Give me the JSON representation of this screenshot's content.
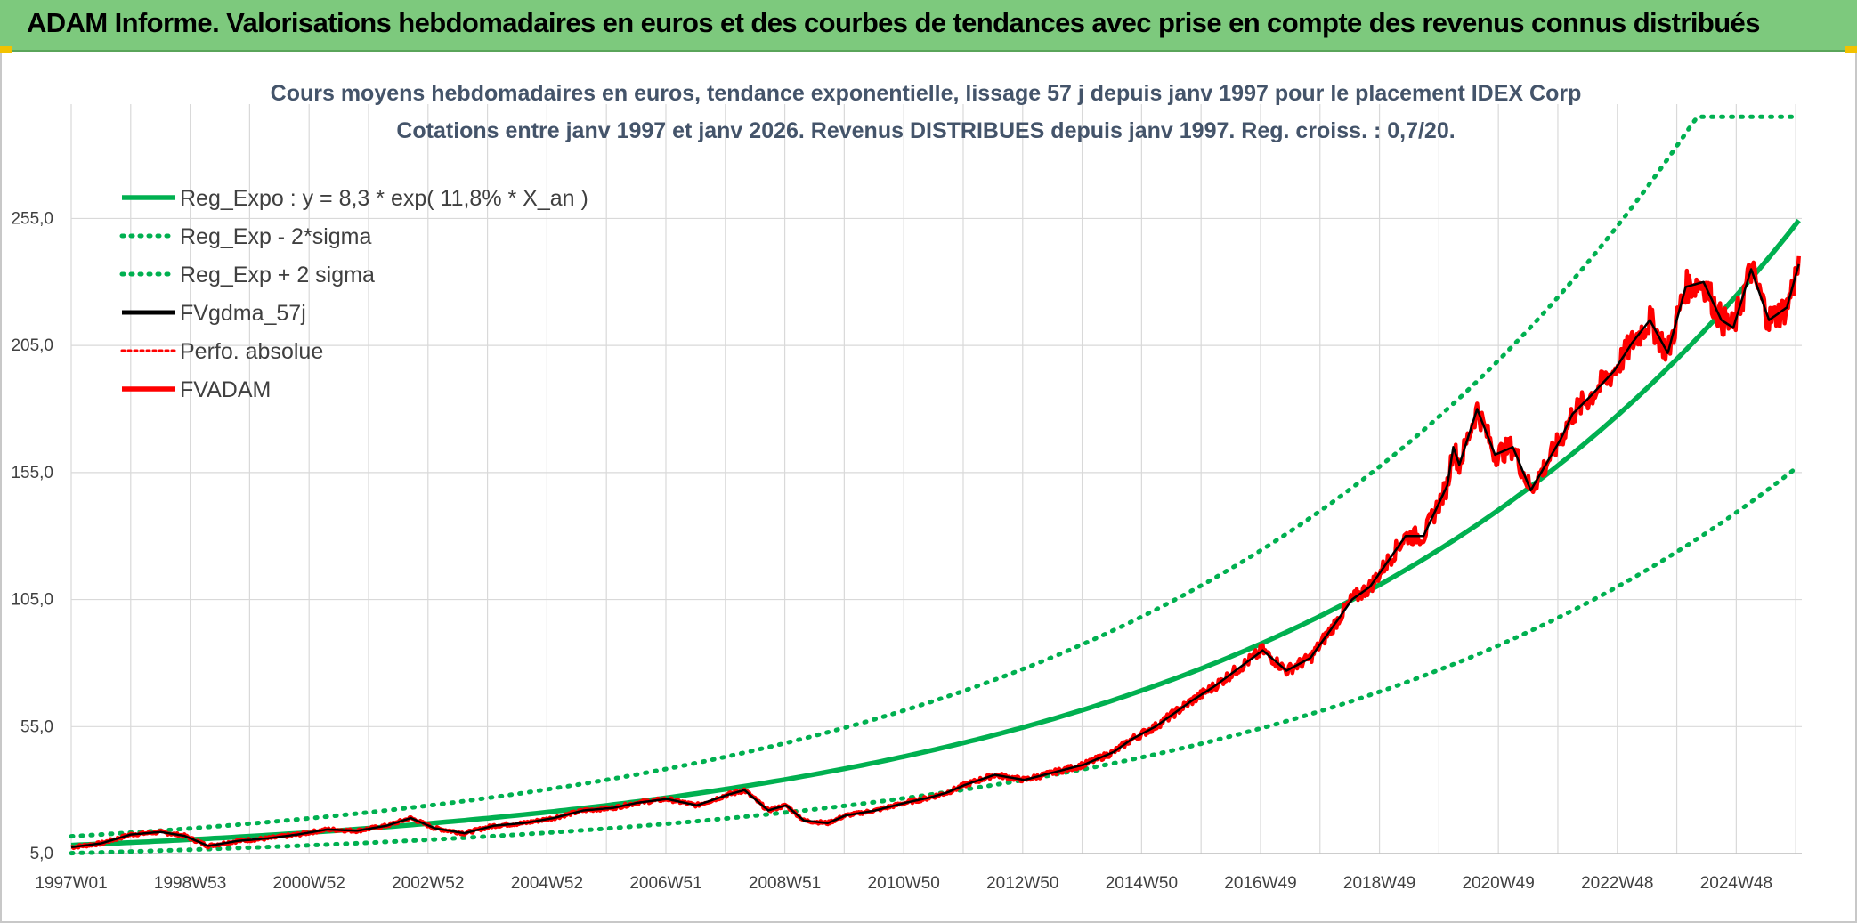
{
  "banner": {
    "title": "ADAM Informe. Valorisations hebdomadaires en euros et des courbes de tendances avec prise en compte des revenus connus distribués"
  },
  "colors": {
    "green": "#00b050",
    "red": "#ff0000",
    "black": "#000000",
    "grid": "#d9d9d9",
    "banner": "#7dc97d"
  },
  "chart_data": {
    "type": "line",
    "title": "Cours moyens hebdomadaires en euros, tendance exponentielle, lissage 57 j depuis janv 1997 pour le placement IDEX Corp",
    "subtitle": "Cotations entre janv 1997 et janv 2026. Revenus DISTRIBUES depuis janv 1997. Reg. croiss. : 0,7/20.",
    "x_ticks": [
      "1997W01",
      "1998W53",
      "2000W52",
      "2002W52",
      "2004W52",
      "2006W51",
      "2008W51",
      "2010W50",
      "2012W50",
      "2014W50",
      "2016W49",
      "2018W49",
      "2020W49",
      "2022W48",
      "2024W48"
    ],
    "y_ticks": [
      "5,0",
      "55,0",
      "105,0",
      "155,0",
      "205,0",
      "255,0"
    ],
    "ylim": [
      5,
      300
    ],
    "xlim": [
      1997.0,
      2026.05
    ],
    "grid": true,
    "legend_position": "top-left",
    "legend": [
      {
        "label": "Reg_Expo : y = 8,3 * exp( 11,8% *  X_an )",
        "style": "solid-green"
      },
      {
        "label": "Reg_Exp - 2*sigma",
        "style": "dotted-green"
      },
      {
        "label": "Reg_Exp + 2 sigma",
        "style": "dotted-green"
      },
      {
        "label": "FVgdma_57j",
        "style": "solid-black"
      },
      {
        "label": "Perfo. absolue",
        "style": "dotted-red"
      },
      {
        "label": "FVADAM",
        "style": "solid-red"
      }
    ],
    "regression": {
      "a": 8.3,
      "b": 0.118,
      "lower_factor": 0.62,
      "upper_factor": 1.42,
      "cap": 295
    },
    "series": [
      {
        "name": "FVADAM",
        "x": [
          1997.0,
          1997.5,
          1998.0,
          1998.5,
          1998.9,
          1999.3,
          1999.8,
          2000.3,
          2000.8,
          2001.3,
          2001.8,
          2002.3,
          2002.7,
          2003.1,
          2003.6,
          2004.1,
          2004.6,
          2005.1,
          2005.6,
          2006.1,
          2006.5,
          2007.0,
          2007.5,
          2008.0,
          2008.3,
          2008.7,
          2009.0,
          2009.3,
          2009.7,
          2010.0,
          2010.5,
          2011.0,
          2011.4,
          2011.7,
          2012.0,
          2012.5,
          2013.0,
          2013.5,
          2014.0,
          2014.5,
          2014.8,
          2015.2,
          2015.5,
          2015.8,
          2016.2,
          2016.6,
          2017.0,
          2017.4,
          2017.8,
          2018.2,
          2018.5,
          2018.8,
          2019.1,
          2019.4,
          2019.7,
          2020.1,
          2020.2,
          2020.3,
          2020.6,
          2020.9,
          2021.2,
          2021.5,
          2021.8,
          2022.0,
          2022.2,
          2022.5,
          2022.9,
          2023.2,
          2023.5,
          2023.8,
          2024.1,
          2024.4,
          2024.7,
          2024.9,
          2025.2,
          2025.5,
          2025.8,
          2026.0
        ],
        "values": [
          7.5,
          9,
          12.5,
          13.5,
          12,
          8,
          10,
          11,
          12.5,
          14.5,
          14,
          16,
          19,
          15,
          13,
          16,
          17,
          19,
          22,
          23,
          25,
          26.5,
          24,
          28,
          30,
          22,
          24,
          18,
          17,
          20,
          22,
          25,
          27,
          29,
          32,
          36,
          34,
          37,
          40,
          45,
          50,
          55,
          60,
          65,
          71,
          78,
          85,
          77,
          82,
          95,
          105,
          110,
          120,
          130,
          130,
          150,
          165,
          158,
          180,
          162,
          165,
          148,
          160,
          168,
          178,
          185,
          195,
          206,
          215,
          202,
          228,
          230,
          215,
          212,
          235,
          215,
          220,
          237
        ],
        "values_scale_note": "display units"
      }
    ]
  }
}
